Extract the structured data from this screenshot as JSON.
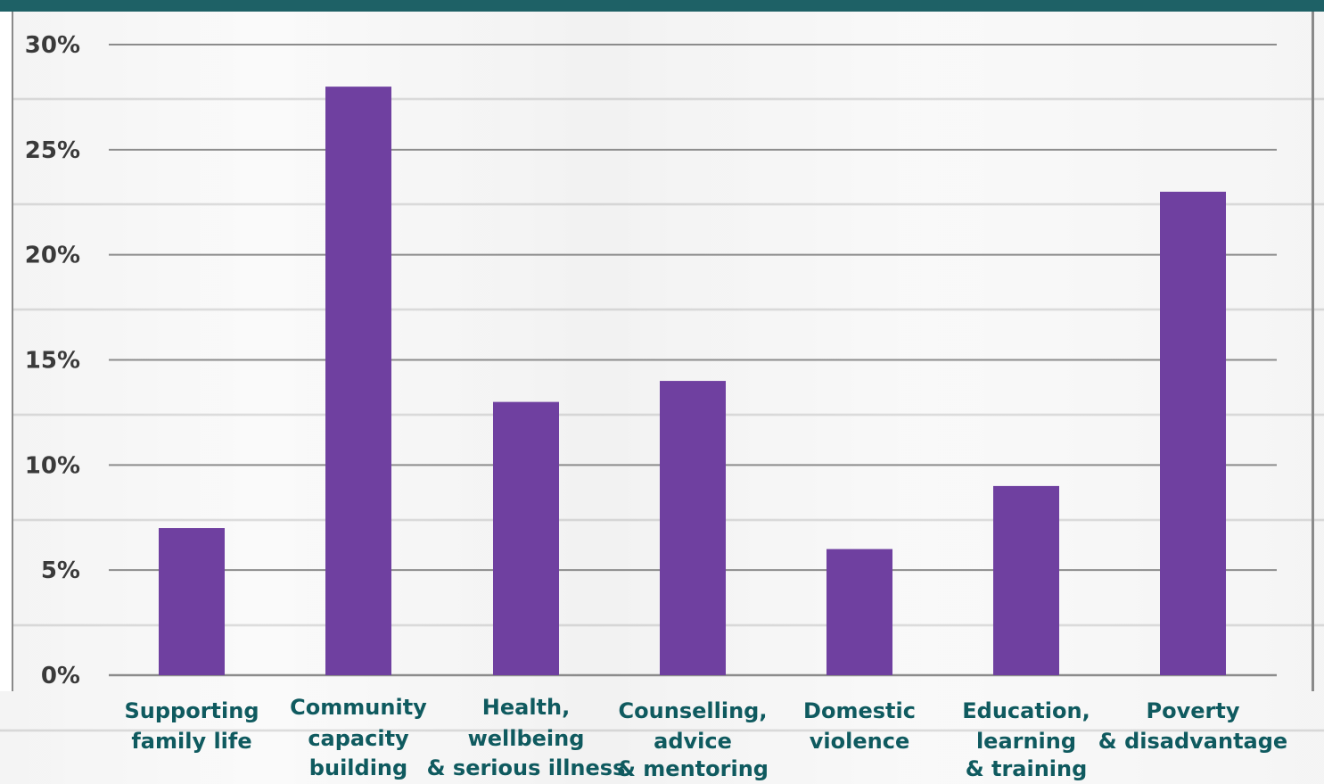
{
  "chart_data": {
    "type": "bar",
    "categories": [
      [
        "Supporting",
        "family life"
      ],
      [
        "Community",
        "capacity",
        "building"
      ],
      [
        "Health,",
        "wellbeing",
        "& serious illness"
      ],
      [
        "Counselling,",
        "advice",
        "& mentoring"
      ],
      [
        "Domestic",
        "violence"
      ],
      [
        "Education,",
        "learning",
        "& training"
      ],
      [
        "Poverty",
        "& disadvantage"
      ]
    ],
    "values": [
      7,
      28,
      13,
      14,
      6,
      9,
      23
    ],
    "ylim": [
      0,
      30
    ],
    "yticks": [
      0,
      5,
      10,
      15,
      20,
      25,
      30
    ],
    "ytick_labels": [
      "0%",
      "5%",
      "10%",
      "15%",
      "20%",
      "25%",
      "30%"
    ],
    "title": "",
    "xlabel": "",
    "ylabel": "",
    "grid": true,
    "colors": {
      "bar": "#6f40a0",
      "grid": "#8c8c8c",
      "x_label": "#0f5a5f",
      "y_label": "#3a3a3a",
      "top_band": "#1e6166"
    }
  }
}
